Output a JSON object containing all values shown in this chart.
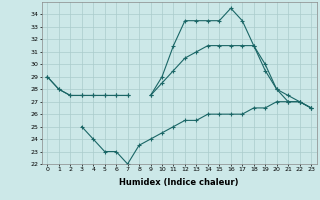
{
  "xlabel": "Humidex (Indice chaleur)",
  "x": [
    0,
    1,
    2,
    3,
    4,
    5,
    6,
    7,
    8,
    9,
    10,
    11,
    12,
    13,
    14,
    15,
    16,
    17,
    18,
    19,
    20,
    21,
    22,
    23
  ],
  "line_max": [
    29.0,
    28.0,
    27.5,
    27.5,
    27.5,
    27.5,
    27.5,
    27.5,
    null,
    27.5,
    29.0,
    31.5,
    33.5,
    33.5,
    33.5,
    33.5,
    34.5,
    33.5,
    31.5,
    30.0,
    28.0,
    27.5,
    27.0,
    26.5
  ],
  "line_mid": [
    29.0,
    28.0,
    27.5,
    27.5,
    27.5,
    27.5,
    27.5,
    27.5,
    null,
    27.5,
    28.5,
    29.5,
    30.5,
    31.0,
    31.5,
    31.5,
    31.5,
    31.5,
    31.5,
    29.5,
    28.0,
    27.0,
    27.0,
    26.5
  ],
  "line_min": [
    null,
    null,
    null,
    25.0,
    24.0,
    23.0,
    23.0,
    22.0,
    23.5,
    24.0,
    24.5,
    25.0,
    25.5,
    25.5,
    26.0,
    26.0,
    26.0,
    26.0,
    26.5,
    26.5,
    27.0,
    27.0,
    27.0,
    26.5
  ],
  "bg_color": "#cce8e8",
  "grid_color": "#aacccc",
  "line_color": "#1a6666",
  "ylim": [
    22,
    35
  ],
  "yticks": [
    22,
    23,
    24,
    25,
    26,
    27,
    28,
    29,
    30,
    31,
    32,
    33,
    34
  ],
  "xticks": [
    0,
    1,
    2,
    3,
    4,
    5,
    6,
    7,
    8,
    9,
    10,
    11,
    12,
    13,
    14,
    15,
    16,
    17,
    18,
    19,
    20,
    21,
    22,
    23
  ]
}
